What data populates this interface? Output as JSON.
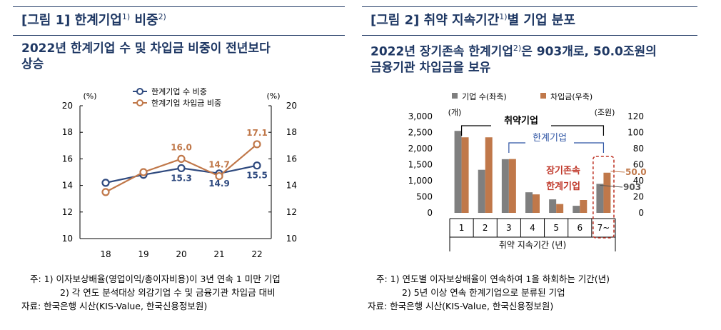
{
  "figure1": {
    "title": "[그림 1] 한계기업",
    "title_sup1": "1)",
    "title_mid": " 비중",
    "title_sup2": "2)",
    "subtitle_line1": "2022년 한계기업 수 및 차입금 비중이 전년보다",
    "subtitle_line2": "상승",
    "notes": [
      "주: 1) 이자보상배율(영업이익/총이자비용)이 3년 연속 1 미만 기업",
      "2) 각 연도 분석대상 외감기업 수 및 금융기관 차입금 대비"
    ],
    "source": "자료: 한국은행 시산(KIS-Value, 한국신용정보원)"
  },
  "figure2": {
    "title": "[그림 2] 취약 지속기간",
    "title_sup1": "1)",
    "title_rest": "별 기업 분포",
    "subtitle_line1_a": "2022년 장기존속 한계기업",
    "subtitle_sup": "2)",
    "subtitle_line1_b": "은 903개로, 50.0조원의",
    "subtitle_line2": "금융기관 차입금을 보유",
    "notes": [
      "주: 1) 연도별 이자보상배율이 연속하여 1을 하회하는 기간(년)",
      "2) 5년 이상 연속 한계기업으로 분류된 기업"
    ],
    "source": "자료: 한국은행 시산(KIS-Value, 한국신용정보원)"
  },
  "chart_data": [
    {
      "type": "line",
      "x": [
        "18",
        "19",
        "20",
        "21",
        "22"
      ],
      "series": [
        {
          "name": "한계기업 수 비중",
          "color": "#2f4a7f",
          "values": [
            14.2,
            14.8,
            15.3,
            14.9,
            15.5
          ]
        },
        {
          "name": "한계기업 차입금 비중",
          "color": "#c0784a",
          "values": [
            13.5,
            15.0,
            16.0,
            14.7,
            17.1
          ]
        }
      ],
      "data_labels": [
        {
          "series": 0,
          "index": 2,
          "text": "15.3"
        },
        {
          "series": 0,
          "index": 3,
          "text": "14.9"
        },
        {
          "series": 0,
          "index": 4,
          "text": "15.5"
        },
        {
          "series": 1,
          "index": 2,
          "text": "16.0"
        },
        {
          "series": 1,
          "index": 3,
          "text": "14.7"
        },
        {
          "series": 1,
          "index": 4,
          "text": "17.1"
        }
      ],
      "ylabel_left": "(%)",
      "ylabel_right": "(%)",
      "ylim_left": [
        10,
        20
      ],
      "ylim_right": [
        10,
        20
      ],
      "yticks": [
        "10",
        "12",
        "14",
        "16",
        "18",
        "20"
      ],
      "legend": "top",
      "grid": false
    },
    {
      "type": "bar",
      "categories": [
        "1",
        "2",
        "3",
        "4",
        "5",
        "6",
        "7~"
      ],
      "series": [
        {
          "name": "기업 수(좌축)",
          "color": "#7f7f7f",
          "axis": "left",
          "values": [
            2550,
            1340,
            1670,
            640,
            420,
            220,
            903
          ]
        },
        {
          "name": "차입금(우축)",
          "color": "#c0784a",
          "axis": "right",
          "values": [
            94,
            94,
            67,
            23,
            11,
            16,
            50.0
          ]
        }
      ],
      "ylabel_left": "(개)",
      "ylabel_right": "(조원)",
      "ylim_left": [
        0,
        3000
      ],
      "ylim_right": [
        0,
        120
      ],
      "yticks_left": [
        "0",
        "500",
        "1,000",
        "1,500",
        "2,000",
        "2,500",
        "3,000"
      ],
      "yticks_right": [
        "0",
        "20",
        "40",
        "60",
        "80",
        "100",
        "120"
      ],
      "xlabel": "취약 지속기간 (년)",
      "annotations": {
        "bracket_all": "취약기업",
        "bracket_marginal": "한계기업",
        "long_term_line1": "장기존속",
        "long_term_line2": "한계기업",
        "label_debt": "50.0",
        "label_count": "903"
      },
      "legend": "top"
    }
  ]
}
